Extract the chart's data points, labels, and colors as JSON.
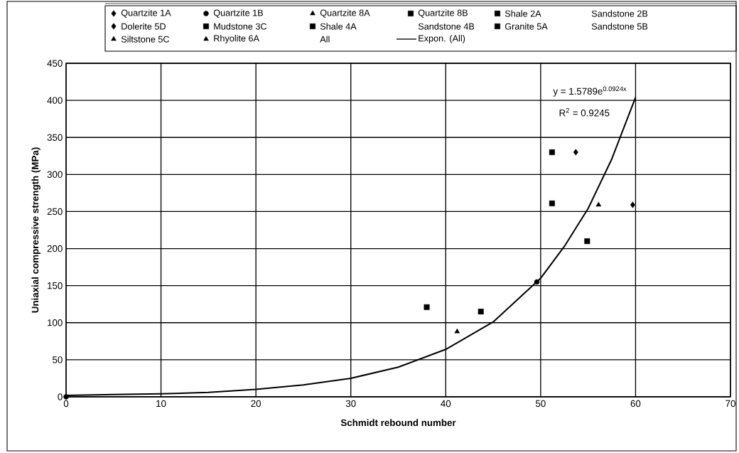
{
  "chart_data": {
    "type": "scatter",
    "xlabel": "Schmidt rebound number",
    "ylabel": "Uniaxial compressive strength (MPa)",
    "xlim": [
      0,
      70
    ],
    "ylim": [
      0,
      450
    ],
    "xticks": [
      0,
      10,
      20,
      30,
      40,
      50,
      60,
      70
    ],
    "yticks": [
      0,
      50,
      100,
      150,
      200,
      250,
      300,
      350,
      400,
      450
    ],
    "grid": true,
    "legend": "top",
    "annotations": [
      "y = 1.5789e$^{0.0924x}$",
      "R$^{2}$ = 0.9245"
    ],
    "series": [
      {
        "name": "Quartzite 1A",
        "marker": "diamond",
        "color": "#000000",
        "x": [
          53.7
        ],
        "values": [
          330
        ]
      },
      {
        "name": "Quartzite 1B",
        "marker": "circle",
        "color": "#000000",
        "x": [
          0,
          49.6
        ],
        "values": [
          0,
          155
        ]
      },
      {
        "name": "Quartzite 8A",
        "marker": "triangle",
        "color": "#000000",
        "x": [
          56.1
        ],
        "values": [
          259
        ]
      },
      {
        "name": "Quartzite 8B",
        "marker": "square",
        "color": "#000000",
        "x": [
          51.2
        ],
        "values": [
          330
        ]
      },
      {
        "name": "Shale 2A",
        "marker": "square",
        "color": "#000000",
        "x": [
          51.2
        ],
        "values": [
          261
        ]
      },
      {
        "name": "Sandstone 2B",
        "marker": "none"
      },
      {
        "name": "Dolerite 5D",
        "marker": "diamond",
        "color": "#000000",
        "x": [
          59.7
        ],
        "values": [
          259
        ]
      },
      {
        "name": "Mudstone 3C",
        "marker": "square",
        "color": "#000000",
        "x": [
          54.9
        ],
        "values": [
          210
        ]
      },
      {
        "name": "Shale 4A",
        "marker": "square",
        "color": "#000000",
        "x": [
          38.0
        ],
        "values": [
          121
        ]
      },
      {
        "name": "Sandstone 4B",
        "marker": "none"
      },
      {
        "name": "Granite 5A",
        "marker": "square",
        "color": "#000000",
        "x": [
          43.7
        ],
        "values": [
          115
        ]
      },
      {
        "name": "Sandstone 5B",
        "marker": "none"
      },
      {
        "name": "Siltstone 5C",
        "marker": "triangle",
        "color": "#000000",
        "x": [
          41.2
        ],
        "values": [
          88
        ]
      },
      {
        "name": "Rhyolite 6A",
        "marker": "triangle",
        "color": "#000000"
      },
      {
        "name": "All",
        "marker": "none"
      },
      {
        "name": "Expon. (All)",
        "type": "line",
        "marker": "none",
        "color": "#000000",
        "x": [
          0,
          5,
          10,
          15,
          20,
          25,
          30,
          35,
          40,
          45,
          50,
          52.5,
          55,
          57.5,
          60
        ],
        "values": [
          2,
          3,
          4,
          6,
          10,
          16,
          25,
          40,
          64,
          101,
          160,
          203,
          254,
          321,
          404
        ]
      }
    ]
  }
}
